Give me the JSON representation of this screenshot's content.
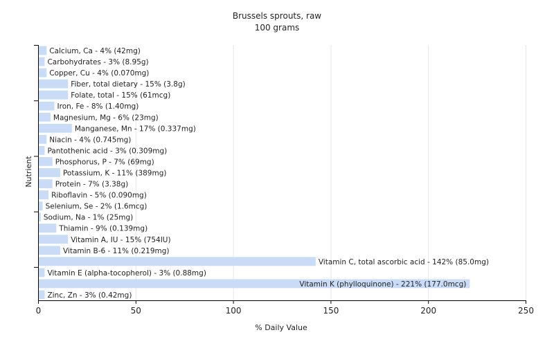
{
  "chart_data": {
    "type": "bar",
    "orientation": "horizontal",
    "title": "Brussels sprouts, raw",
    "subtitle": "100 grams",
    "xlabel": "% Daily Value",
    "ylabel": "Nutrient",
    "xlim": [
      0,
      250
    ],
    "xticks": [
      0,
      50,
      100,
      150,
      200,
      250
    ],
    "grid": true,
    "bar_color": "#c8dcf7",
    "grid_color": "#e6e6e6",
    "categories": [
      "Calcium, Ca",
      "Carbohydrates",
      "Copper, Cu",
      "Fiber, total dietary",
      "Folate, total",
      "Iron, Fe",
      "Magnesium, Mg",
      "Manganese, Mn",
      "Niacin",
      "Pantothenic acid",
      "Phosphorus, P",
      "Potassium, K",
      "Protein",
      "Riboflavin",
      "Selenium, Se",
      "Sodium, Na",
      "Thiamin",
      "Vitamin A, IU",
      "Vitamin B-6",
      "Vitamin C, total ascorbic acid",
      "Vitamin E (alpha-tocopherol)",
      "Vitamin K (phylloquinone)",
      "Zinc, Zn"
    ],
    "values": [
      4,
      3,
      4,
      15,
      15,
      8,
      6,
      17,
      4,
      3,
      7,
      11,
      7,
      5,
      2,
      1,
      9,
      15,
      11,
      142,
      3,
      221,
      3
    ],
    "labels": [
      "Calcium, Ca - 4% (42mg)",
      "Carbohydrates - 3% (8.95g)",
      "Copper, Cu - 4% (0.070mg)",
      "Fiber, total dietary - 15% (3.8g)",
      "Folate, total - 15% (61mcg)",
      "Iron, Fe - 8% (1.40mg)",
      "Magnesium, Mg - 6% (23mg)",
      "Manganese, Mn - 17% (0.337mg)",
      "Niacin - 4% (0.745mg)",
      "Pantothenic acid - 3% (0.309mg)",
      "Phosphorus, P - 7% (69mg)",
      "Potassium, K - 11% (389mg)",
      "Protein - 7% (3.38g)",
      "Riboflavin - 5% (0.090mg)",
      "Selenium, Se - 2% (1.6mcg)",
      "Sodium, Na - 1% (25mg)",
      "Thiamin - 9% (0.139mg)",
      "Vitamin A, IU - 15% (754IU)",
      "Vitamin B-6 - 11% (0.219mg)",
      "Vitamin C, total ascorbic acid - 142% (85.0mg)",
      "Vitamin E (alpha-tocopherol) - 3% (0.88mg)",
      "Vitamin K (phylloquinone) - 221% (177.0mcg)",
      "Zinc, Zn - 3% (0.42mg)"
    ]
  }
}
